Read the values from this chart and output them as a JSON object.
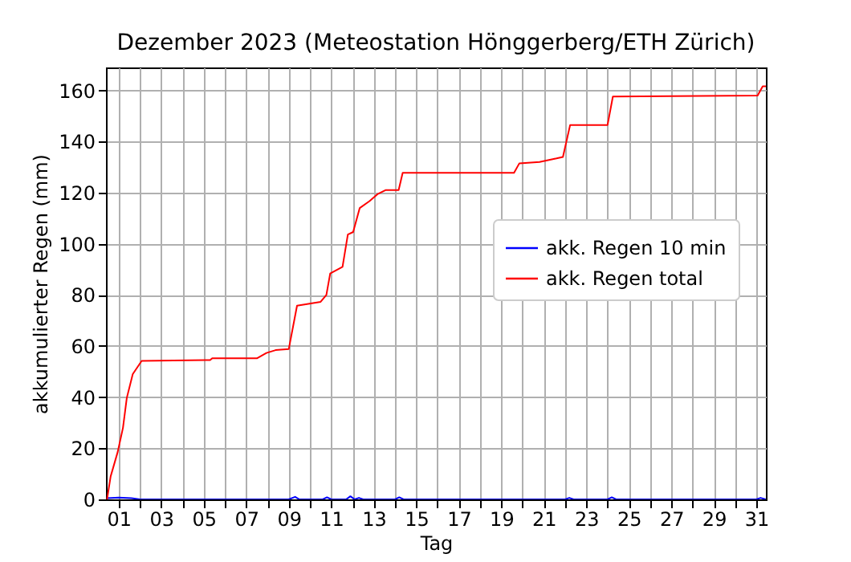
{
  "chart_data": {
    "type": "line",
    "title": "Dezember 2023  (Meteostation Hönggerberg/ETH Zürich)",
    "xlabel": "Tag",
    "ylabel": "akkumulierter Regen (mm)",
    "xlim": [
      0.4,
      31.45
    ],
    "ylim": [
      0,
      169
    ],
    "xticks": [
      {
        "value": 1,
        "label": "01"
      },
      {
        "value": 2,
        "label": null
      },
      {
        "value": 3,
        "label": "03"
      },
      {
        "value": 4,
        "label": null
      },
      {
        "value": 5,
        "label": "05"
      },
      {
        "value": 6,
        "label": null
      },
      {
        "value": 7,
        "label": "07"
      },
      {
        "value": 8,
        "label": null
      },
      {
        "value": 9,
        "label": "09"
      },
      {
        "value": 10,
        "label": null
      },
      {
        "value": 11,
        "label": "11"
      },
      {
        "value": 12,
        "label": null
      },
      {
        "value": 13,
        "label": "13"
      },
      {
        "value": 14,
        "label": null
      },
      {
        "value": 15,
        "label": "15"
      },
      {
        "value": 16,
        "label": null
      },
      {
        "value": 17,
        "label": "17"
      },
      {
        "value": 18,
        "label": null
      },
      {
        "value": 19,
        "label": "19"
      },
      {
        "value": 20,
        "label": null
      },
      {
        "value": 21,
        "label": "21"
      },
      {
        "value": 22,
        "label": null
      },
      {
        "value": 23,
        "label": "23"
      },
      {
        "value": 24,
        "label": null
      },
      {
        "value": 25,
        "label": "25"
      },
      {
        "value": 26,
        "label": null
      },
      {
        "value": 27,
        "label": "27"
      },
      {
        "value": 28,
        "label": null
      },
      {
        "value": 29,
        "label": "29"
      },
      {
        "value": 30,
        "label": null
      },
      {
        "value": 31,
        "label": "31"
      }
    ],
    "yticks": [
      0,
      20,
      40,
      60,
      80,
      100,
      120,
      140,
      160
    ],
    "grid": true,
    "legend": "right",
    "line_style": "solid",
    "marker": "none",
    "series": [
      {
        "name": "akk. Regen 10 min",
        "color": "#0000ff",
        "x": [
          0.45,
          1.0,
          1.6,
          2.0,
          9.0,
          9.3,
          9.5,
          10.6,
          10.8,
          11.0,
          11.7,
          11.9,
          12.1,
          12.3,
          12.5,
          14.0,
          14.2,
          14.4,
          22.0,
          22.2,
          22.4,
          24.0,
          24.2,
          24.4,
          31.0,
          31.2,
          31.45
        ],
        "values": [
          0.5,
          0.7,
          0.5,
          0,
          0,
          1,
          0,
          0,
          0.8,
          0,
          0,
          1.2,
          0,
          0.6,
          0,
          0,
          0.8,
          0,
          0,
          0.6,
          0,
          0,
          0.8,
          0,
          0,
          0.6,
          0
        ]
      },
      {
        "name": "akk. Regen total",
        "color": "#ff0000",
        "x": [
          0.45,
          0.62,
          0.95,
          1.2,
          1.38,
          1.66,
          2.08,
          5.3,
          5.4,
          7.5,
          7.95,
          8.38,
          9.0,
          9.39,
          10.5,
          10.77,
          10.95,
          11.53,
          11.78,
          12.03,
          12.34,
          12.8,
          13.17,
          13.55,
          14.17,
          14.36,
          19.6,
          19.85,
          20.8,
          21.6,
          21.9,
          22.24,
          24.0,
          24.25,
          31.06,
          31.3,
          31.45
        ],
        "values": [
          0,
          9,
          18.5,
          28,
          39.7,
          49,
          54.2,
          54.5,
          55.2,
          55.2,
          57.3,
          58.4,
          58.8,
          75.8,
          77.3,
          80,
          88.4,
          91,
          103.6,
          104.6,
          114,
          116.7,
          119.4,
          121,
          121,
          127.8,
          127.8,
          131.5,
          132,
          133.4,
          134,
          146.5,
          146.5,
          157.6,
          158,
          161.6,
          161.6
        ]
      }
    ]
  }
}
